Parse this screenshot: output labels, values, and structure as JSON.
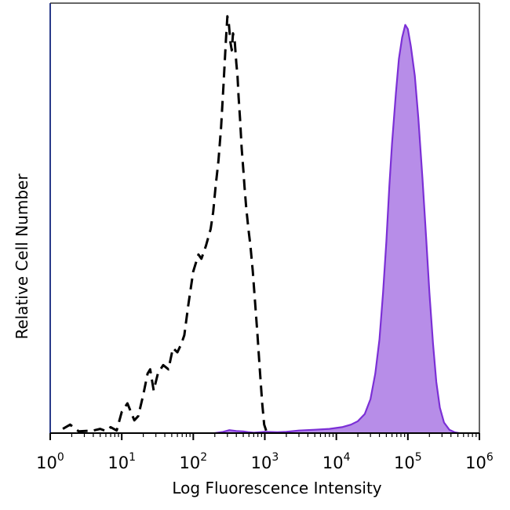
{
  "chart_data": {
    "type": "area",
    "title": "",
    "xlabel": "Log Fluorescence Intensity",
    "ylabel": "Relative Cell Number",
    "xscale": "log",
    "xlim": [
      1,
      1000000
    ],
    "ylim": [
      0,
      100
    ],
    "grid": false,
    "x_ticks": [
      {
        "base": "10",
        "exp": "0",
        "value": 1
      },
      {
        "base": "10",
        "exp": "1",
        "value": 10
      },
      {
        "base": "10",
        "exp": "2",
        "value": 100
      },
      {
        "base": "10",
        "exp": "3",
        "value": 1000
      },
      {
        "base": "10",
        "exp": "4",
        "value": 10000
      },
      {
        "base": "10",
        "exp": "5",
        "value": 100000
      },
      {
        "base": "10",
        "exp": "6",
        "value": 1000000
      }
    ],
    "series": [
      {
        "style": "dashed-line",
        "color": "#000000",
        "points": [
          [
            1.5,
            1
          ],
          [
            1.9,
            2
          ],
          [
            2.5,
            0.4
          ],
          [
            4,
            0.6
          ],
          [
            5,
            1
          ],
          [
            6,
            0.5
          ],
          [
            7,
            1.4
          ],
          [
            8.5,
            0.6
          ],
          [
            10,
            5
          ],
          [
            12,
            7
          ],
          [
            15,
            3
          ],
          [
            17,
            4
          ],
          [
            20,
            9
          ],
          [
            23,
            14
          ],
          [
            25,
            15
          ],
          [
            28,
            10
          ],
          [
            32,
            14
          ],
          [
            38,
            16
          ],
          [
            45,
            15
          ],
          [
            52,
            20
          ],
          [
            60,
            19
          ],
          [
            68,
            21
          ],
          [
            75,
            23
          ],
          [
            85,
            30
          ],
          [
            100,
            38
          ],
          [
            118,
            42
          ],
          [
            130,
            41
          ],
          [
            150,
            44
          ],
          [
            175,
            48
          ],
          [
            190,
            52
          ],
          [
            205,
            58
          ],
          [
            225,
            64
          ],
          [
            245,
            72
          ],
          [
            265,
            82
          ],
          [
            285,
            92
          ],
          [
            300,
            98
          ],
          [
            315,
            96
          ],
          [
            330,
            92
          ],
          [
            345,
            90
          ],
          [
            360,
            94
          ],
          [
            380,
            92
          ],
          [
            400,
            87
          ],
          [
            415,
            84
          ],
          [
            430,
            79
          ],
          [
            450,
            74
          ],
          [
            475,
            67
          ],
          [
            500,
            62
          ],
          [
            520,
            58
          ],
          [
            550,
            53
          ],
          [
            590,
            48
          ],
          [
            630,
            44
          ],
          [
            680,
            38
          ],
          [
            730,
            31
          ],
          [
            790,
            23
          ],
          [
            850,
            15
          ],
          [
            920,
            7
          ],
          [
            980,
            2
          ],
          [
            1050,
            0.5
          ],
          [
            1100,
            0
          ]
        ]
      },
      {
        "style": "filled-area",
        "color": "#7b2fd6",
        "fill": "#b78de8",
        "points": [
          [
            200,
            0
          ],
          [
            260,
            0.3
          ],
          [
            320,
            0.7
          ],
          [
            400,
            0.5
          ],
          [
            500,
            0.4
          ],
          [
            600,
            0.2
          ],
          [
            700,
            0.1
          ],
          [
            1000,
            0.3
          ],
          [
            1500,
            0.2
          ],
          [
            2000,
            0.3
          ],
          [
            3000,
            0.6
          ],
          [
            5000,
            0.8
          ],
          [
            8000,
            1.0
          ],
          [
            12000,
            1.4
          ],
          [
            16000,
            2.0
          ],
          [
            20000,
            2.8
          ],
          [
            25000,
            4.5
          ],
          [
            30000,
            8
          ],
          [
            35000,
            14
          ],
          [
            40000,
            22
          ],
          [
            45000,
            33
          ],
          [
            50000,
            45
          ],
          [
            55000,
            58
          ],
          [
            60000,
            68
          ],
          [
            68000,
            80
          ],
          [
            75000,
            88
          ],
          [
            83000,
            93
          ],
          [
            92000,
            96
          ],
          [
            100000,
            95
          ],
          [
            110000,
            91
          ],
          [
            125000,
            84
          ],
          [
            140000,
            74
          ],
          [
            160000,
            60
          ],
          [
            180000,
            46
          ],
          [
            200000,
            33
          ],
          [
            225000,
            21
          ],
          [
            250000,
            12
          ],
          [
            280000,
            6
          ],
          [
            320000,
            2.5
          ],
          [
            380000,
            0.8
          ],
          [
            450000,
            0.2
          ],
          [
            520000,
            0
          ]
        ]
      }
    ]
  }
}
